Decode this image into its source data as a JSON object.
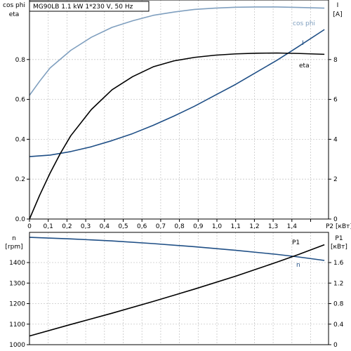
{
  "chart_data": [
    {
      "type": "line",
      "title": "MG90LB   1.1 kW   1*230 V, 50 Hz",
      "x_label": "P2 [кВт]",
      "x_ticks": [
        "0",
        "0,1",
        "0,2",
        "0,3",
        "0,4",
        "0,5",
        "0,6",
        "0,7",
        "0,8",
        "0,9",
        "1,0",
        "1,1",
        "1,2",
        "1,3",
        "1,4"
      ],
      "xlim": [
        0,
        1.45
      ],
      "grid": true,
      "left_axis": {
        "label_line1": "cos phi",
        "label_line2": "eta",
        "ticks": [
          "0.0",
          "0.2",
          "0.4",
          "0.6",
          "0.8"
        ],
        "ylim": [
          0,
          1.0
        ]
      },
      "right_axis": {
        "label_line1": "I",
        "label_line2": "[A]",
        "ticks": [
          "0",
          "2",
          "4",
          "6",
          "8"
        ],
        "ylim": [
          0,
          10
        ]
      },
      "series": [
        {
          "name": "cos phi",
          "axis": "left",
          "color": "#7f9fbf",
          "points": [
            [
              0,
              0.565
            ],
            [
              0.05,
              0.63
            ],
            [
              0.1,
              0.69
            ],
            [
              0.2,
              0.77
            ],
            [
              0.3,
              0.83
            ],
            [
              0.4,
              0.875
            ],
            [
              0.5,
              0.905
            ],
            [
              0.6,
              0.93
            ],
            [
              0.7,
              0.945
            ],
            [
              0.8,
              0.957
            ],
            [
              0.9,
              0.963
            ],
            [
              1.0,
              0.967
            ],
            [
              1.1,
              0.968
            ],
            [
              1.2,
              0.968
            ],
            [
              1.3,
              0.966
            ],
            [
              1.43,
              0.963
            ]
          ]
        },
        {
          "name": "I",
          "axis": "right",
          "color": "#1f4f86",
          "points": [
            [
              0,
              2.85
            ],
            [
              0.1,
              2.92
            ],
            [
              0.2,
              3.08
            ],
            [
              0.3,
              3.3
            ],
            [
              0.4,
              3.58
            ],
            [
              0.5,
              3.9
            ],
            [
              0.6,
              4.28
            ],
            [
              0.7,
              4.7
            ],
            [
              0.8,
              5.15
            ],
            [
              0.9,
              5.65
            ],
            [
              1.0,
              6.15
            ],
            [
              1.1,
              6.7
            ],
            [
              1.2,
              7.25
            ],
            [
              1.3,
              7.85
            ],
            [
              1.43,
              8.65
            ]
          ]
        },
        {
          "name": "eta",
          "axis": "left",
          "color": "#000000",
          "points": [
            [
              0,
              0
            ],
            [
              0.05,
              0.11
            ],
            [
              0.1,
              0.21
            ],
            [
              0.15,
              0.3
            ],
            [
              0.2,
              0.38
            ],
            [
              0.3,
              0.5
            ],
            [
              0.4,
              0.59
            ],
            [
              0.5,
              0.65
            ],
            [
              0.6,
              0.695
            ],
            [
              0.7,
              0.722
            ],
            [
              0.8,
              0.738
            ],
            [
              0.9,
              0.748
            ],
            [
              1.0,
              0.754
            ],
            [
              1.1,
              0.757
            ],
            [
              1.2,
              0.758
            ],
            [
              1.3,
              0.756
            ],
            [
              1.43,
              0.752
            ]
          ]
        }
      ]
    },
    {
      "type": "line",
      "x_label": "",
      "xlim": [
        0,
        1.45
      ],
      "grid": true,
      "left_axis": {
        "label_line1": "n",
        "label_line2": "[rpm]",
        "ticks": [
          "1000",
          "1100",
          "1200",
          "1300",
          "1400"
        ],
        "ylim": [
          1000,
          1500
        ]
      },
      "right_axis": {
        "label_line1": "P1",
        "label_line2": "[кВт]",
        "ticks": [
          "0",
          "0.4",
          "0.8",
          "1.2",
          "1.6"
        ],
        "ylim": [
          0,
          2.0
        ]
      },
      "series": [
        {
          "name": "n",
          "axis": "left",
          "color": "#1f4f86",
          "points": [
            [
              0,
              1478
            ],
            [
              0.2,
              1471
            ],
            [
              0.4,
              1462
            ],
            [
              0.6,
              1450
            ],
            [
              0.8,
              1436
            ],
            [
              1.0,
              1420
            ],
            [
              1.2,
              1402
            ],
            [
              1.3,
              1391
            ],
            [
              1.43,
              1375
            ]
          ]
        },
        {
          "name": "P1",
          "axis": "right",
          "color": "#000000",
          "points": [
            [
              0,
              0.155
            ],
            [
              0.2,
              0.36
            ],
            [
              0.4,
              0.56
            ],
            [
              0.6,
              0.77
            ],
            [
              0.8,
              0.99
            ],
            [
              1.0,
              1.22
            ],
            [
              1.2,
              1.47
            ],
            [
              1.3,
              1.6
            ],
            [
              1.43,
              1.78
            ]
          ]
        }
      ]
    }
  ]
}
